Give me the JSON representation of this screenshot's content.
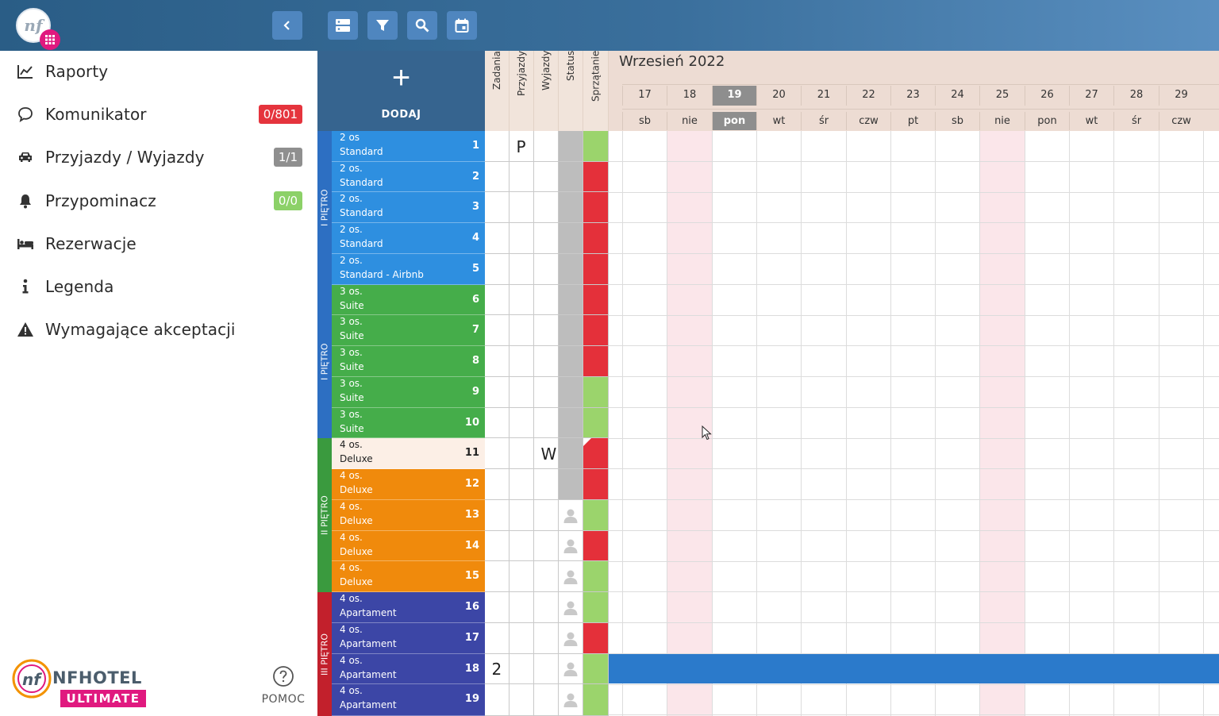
{
  "sidebar": {
    "items": [
      {
        "label": "Raporty",
        "icon": "chart-line-icon",
        "badge": "",
        "badge_color": ""
      },
      {
        "label": "Komunikator",
        "icon": "chat-bubble-icon",
        "badge": "0/801",
        "badge_color": "#e5343d"
      },
      {
        "label": "Przyjazdy / Wyjazdy",
        "icon": "car-icon",
        "badge": "1/1",
        "badge_color": "#8f8f8f"
      },
      {
        "label": "Przypominacz",
        "icon": "bell-icon",
        "badge": "0/0",
        "badge_color": "#8cd168"
      },
      {
        "label": "Rezerwacje",
        "icon": "bed-icon",
        "badge": "",
        "badge_color": ""
      },
      {
        "label": "Legenda",
        "icon": "info-icon",
        "badge": "",
        "badge_color": ""
      },
      {
        "label": "Wymagające akceptacji",
        "icon": "warning-icon",
        "badge": "",
        "badge_color": ""
      }
    ],
    "brand_name": "NFHOTEL",
    "brand_edition": "ULTIMATE",
    "help_label": "POMOC"
  },
  "toolbar": {
    "buttons": [
      "rooms-view-icon",
      "filter-icon",
      "search-icon",
      "calendar-icon"
    ]
  },
  "rooms_panel": {
    "add_label": "DODAJ",
    "add_symbol": "+",
    "floors": [
      {
        "label": "I PIĘTRO",
        "color": "#2d6fc2"
      },
      {
        "label": "I PIĘTRO",
        "color": "#2d6fc2"
      },
      {
        "label": "II PIĘTRO",
        "color": "#3a9a3e"
      },
      {
        "label": "III PIĘTRO",
        "color": "#c2202c"
      }
    ],
    "rooms": [
      {
        "num": "1",
        "cap": "2 os",
        "type": "Standard",
        "color": "#2e8fe0",
        "arrival": "P",
        "departure": "",
        "tasks": "",
        "status": "grey",
        "cleaning": "green"
      },
      {
        "num": "2",
        "cap": "2 os.",
        "type": "Standard",
        "color": "#2e8fe0",
        "arrival": "",
        "departure": "",
        "tasks": "",
        "status": "grey",
        "cleaning": "red"
      },
      {
        "num": "3",
        "cap": "2 os.",
        "type": "Standard",
        "color": "#2e8fe0",
        "arrival": "",
        "departure": "",
        "tasks": "",
        "status": "grey",
        "cleaning": "red"
      },
      {
        "num": "4",
        "cap": "2 os.",
        "type": "Standard",
        "color": "#2e8fe0",
        "arrival": "",
        "departure": "",
        "tasks": "",
        "status": "grey",
        "cleaning": "red"
      },
      {
        "num": "5",
        "cap": "2 os.",
        "type": "Standard - Airbnb",
        "color": "#2e8fe0",
        "arrival": "",
        "departure": "",
        "tasks": "",
        "status": "grey",
        "cleaning": "red"
      },
      {
        "num": "6",
        "cap": "3 os.",
        "type": "Suite",
        "color": "#45ad4a",
        "arrival": "",
        "departure": "",
        "tasks": "",
        "status": "grey",
        "cleaning": "red"
      },
      {
        "num": "7",
        "cap": "3 os.",
        "type": "Suite",
        "color": "#45ad4a",
        "arrival": "",
        "departure": "",
        "tasks": "",
        "status": "grey",
        "cleaning": "red"
      },
      {
        "num": "8",
        "cap": "3 os.",
        "type": "Suite",
        "color": "#45ad4a",
        "arrival": "",
        "departure": "",
        "tasks": "",
        "status": "grey",
        "cleaning": "red"
      },
      {
        "num": "9",
        "cap": "3 os.",
        "type": "Suite",
        "color": "#45ad4a",
        "arrival": "",
        "departure": "",
        "tasks": "",
        "status": "grey",
        "cleaning": "green"
      },
      {
        "num": "10",
        "cap": "3 os.",
        "type": "Suite",
        "color": "#45ad4a",
        "arrival": "",
        "departure": "",
        "tasks": "",
        "status": "grey",
        "cleaning": "green"
      },
      {
        "num": "11",
        "cap": "4 os.",
        "type": "Deluxe",
        "color": "#fcefe6",
        "arrival": "",
        "departure": "W",
        "tasks": "",
        "status": "grey",
        "cleaning": "red"
      },
      {
        "num": "12",
        "cap": "4 os.",
        "type": "Deluxe",
        "color": "#f08a0c",
        "arrival": "",
        "departure": "",
        "tasks": "",
        "status": "grey",
        "cleaning": "red"
      },
      {
        "num": "13",
        "cap": "4 os.",
        "type": "Deluxe",
        "color": "#f08a0c",
        "arrival": "",
        "departure": "",
        "tasks": "",
        "status": "person",
        "cleaning": "green"
      },
      {
        "num": "14",
        "cap": "4 os.",
        "type": "Deluxe",
        "color": "#f08a0c",
        "arrival": "",
        "departure": "",
        "tasks": "",
        "status": "person",
        "cleaning": "red"
      },
      {
        "num": "15",
        "cap": "4 os.",
        "type": "Deluxe",
        "color": "#f08a0c",
        "arrival": "",
        "departure": "",
        "tasks": "",
        "status": "person",
        "cleaning": "green"
      },
      {
        "num": "16",
        "cap": "4 os.",
        "type": "Apartament",
        "color": "#3c46a6",
        "arrival": "",
        "departure": "",
        "tasks": "",
        "status": "person",
        "cleaning": "green"
      },
      {
        "num": "17",
        "cap": "4 os.",
        "type": "Apartament",
        "color": "#3c46a6",
        "arrival": "",
        "departure": "",
        "tasks": "",
        "status": "person",
        "cleaning": "red"
      },
      {
        "num": "18",
        "cap": "4 os.",
        "type": "Apartament",
        "color": "#3c46a6",
        "arrival": "",
        "departure": "",
        "tasks": "2",
        "status": "person",
        "cleaning": "green"
      },
      {
        "num": "19",
        "cap": "4 os.",
        "type": "Apartament",
        "color": "#3c46a6",
        "arrival": "",
        "departure": "",
        "tasks": "",
        "status": "person",
        "cleaning": "green"
      }
    ]
  },
  "columns": [
    "Zadania",
    "Przyjazdy",
    "Wyjazdy",
    "Status",
    "Sprzątanie"
  ],
  "calendar": {
    "month": "Wrzesień 2022",
    "days": [
      {
        "num": "17",
        "name": "sb",
        "today": false,
        "sunday": false
      },
      {
        "num": "18",
        "name": "nie",
        "today": false,
        "sunday": true
      },
      {
        "num": "19",
        "name": "pon",
        "today": true,
        "sunday": false
      },
      {
        "num": "20",
        "name": "wt",
        "today": false,
        "sunday": false
      },
      {
        "num": "21",
        "name": "śr",
        "today": false,
        "sunday": false
      },
      {
        "num": "22",
        "name": "czw",
        "today": false,
        "sunday": false
      },
      {
        "num": "23",
        "name": "pt",
        "today": false,
        "sunday": false
      },
      {
        "num": "24",
        "name": "sb",
        "today": false,
        "sunday": false
      },
      {
        "num": "25",
        "name": "nie",
        "today": false,
        "sunday": true
      },
      {
        "num": "26",
        "name": "pon",
        "today": false,
        "sunday": false
      },
      {
        "num": "27",
        "name": "wt",
        "today": false,
        "sunday": false
      },
      {
        "num": "28",
        "name": "śr",
        "today": false,
        "sunday": false
      },
      {
        "num": "29",
        "name": "czw",
        "today": false,
        "sunday": false
      }
    ]
  },
  "colors": {
    "cleaning_red": "#e4303a",
    "cleaning_green": "#9bd46c",
    "status_grey": "#bdbdbd",
    "booking": "#2b7acb",
    "sunday": "#fbe6ea"
  }
}
